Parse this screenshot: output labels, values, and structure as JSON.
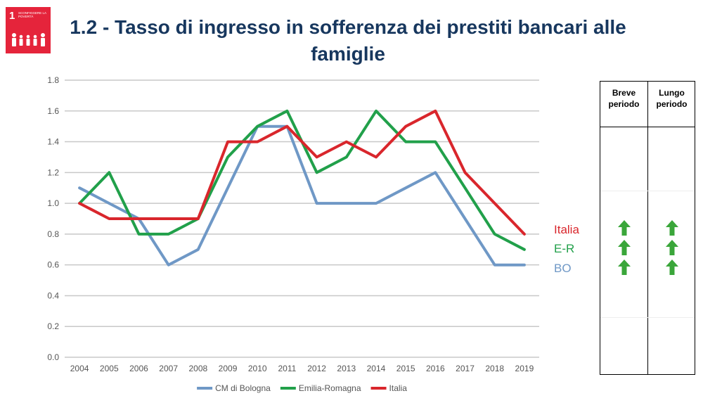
{
  "badge": {
    "number": "1",
    "label": "SCONFIGGERE LA POVERTÀ",
    "color": "#e5243b"
  },
  "title": "1.2 - Tasso di ingresso in sofferenza dei prestiti bancari alle famiglie",
  "chart_data": {
    "type": "line",
    "title": "1.2 - Tasso di ingresso in sofferenza dei prestiti bancari alle famiglie",
    "x": [
      "2004",
      "2005",
      "2006",
      "2007",
      "2008",
      "2009",
      "2010",
      "2011",
      "2012",
      "2013",
      "2014",
      "2015",
      "2016",
      "2017",
      "2018",
      "2019"
    ],
    "series": [
      {
        "name": "CM di Bologna",
        "color": "#6f98c6",
        "values": [
          1.1,
          1.0,
          0.9,
          0.6,
          0.7,
          1.1,
          1.5,
          1.5,
          1.0,
          1.0,
          1.0,
          1.1,
          1.2,
          0.9,
          0.6,
          0.6
        ]
      },
      {
        "name": "Emilia-Romagna",
        "color": "#21a04a",
        "values": [
          1.0,
          1.2,
          0.8,
          0.8,
          0.9,
          1.3,
          1.5,
          1.6,
          1.2,
          1.3,
          1.6,
          1.4,
          1.4,
          1.1,
          0.8,
          0.7
        ]
      },
      {
        "name": "Italia",
        "color": "#d9262c",
        "values": [
          1.0,
          0.9,
          0.9,
          0.9,
          0.9,
          1.4,
          1.4,
          1.5,
          1.3,
          1.4,
          1.3,
          1.5,
          1.6,
          1.2,
          1.0,
          0.8
        ]
      }
    ],
    "yticks": [
      "0.0",
      "0.2",
      "0.4",
      "0.6",
      "0.8",
      "1.0",
      "1.2",
      "1.4",
      "1.6",
      "1.8"
    ],
    "ylim": [
      0,
      1.8
    ],
    "grid": true,
    "legend": "bottom"
  },
  "series_labels": [
    {
      "text": "Italia",
      "color": "#d9262c"
    },
    {
      "text": "E-R",
      "color": "#21a04a"
    },
    {
      "text": "BO",
      "color": "#6f98c6"
    }
  ],
  "trend_table": {
    "col1": "Breve periodo",
    "col2": "Lungo periodo",
    "rows": [
      {
        "short": "up",
        "long": "up"
      },
      {
        "short": "up",
        "long": "up"
      },
      {
        "short": "up",
        "long": "up"
      }
    ],
    "arrow_color": "#3aa63a",
    "arrow_icon": "arrow-up-icon"
  }
}
